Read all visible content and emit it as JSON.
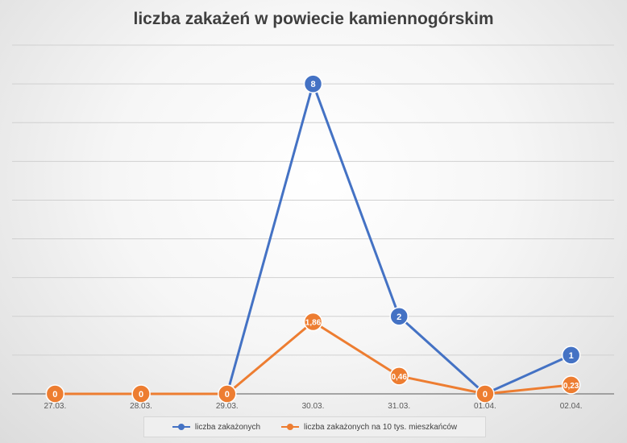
{
  "chart_data": {
    "type": "line",
    "title": "liczba zakażeń w powiecie kamiennogórskim",
    "categories": [
      "27.03.",
      "28.03.",
      "29.03.",
      "30.03.",
      "31.03.",
      "01.04.",
      "02.04."
    ],
    "ylim": [
      0,
      9
    ],
    "grid": true,
    "legend_position": "bottom",
    "series": [
      {
        "name": "liczba zakażonych",
        "color": "#4472c4",
        "values": [
          null,
          null,
          0,
          8,
          2,
          0,
          1
        ],
        "labels": [
          "",
          "",
          "",
          "8",
          "2",
          "",
          "1"
        ]
      },
      {
        "name": "liczba zakażonych na 10 tys. mieszkańców",
        "color": "#ed7d31",
        "values": [
          0,
          0,
          0,
          1.86,
          0.46,
          0,
          0.23
        ],
        "labels": [
          "0",
          "0",
          "0",
          "1,86",
          "0,46",
          "0",
          "0,23"
        ]
      }
    ]
  }
}
